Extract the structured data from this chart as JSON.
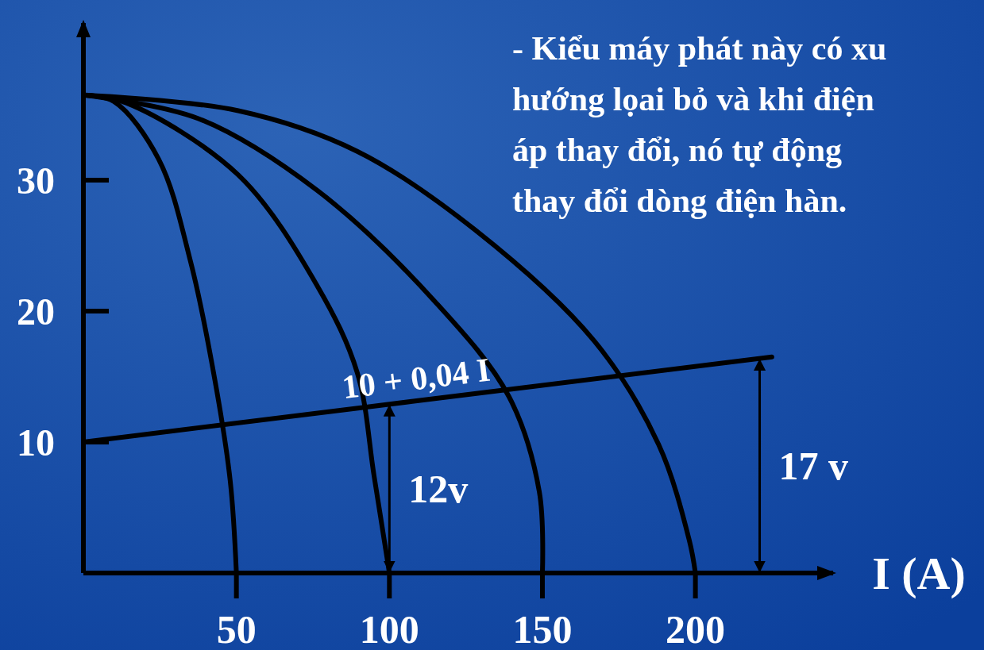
{
  "chart_data": {
    "type": "line",
    "xlabel": "I (A)",
    "xlim": [
      0,
      245
    ],
    "ylim": [
      0,
      42
    ],
    "xticks": [
      50,
      100,
      150,
      200
    ],
    "yticks": [
      10,
      20,
      30
    ],
    "grid": false,
    "marker": "none",
    "line_style": "solid",
    "series": [
      {
        "color": "#000000",
        "x": [
          0,
          10,
          24.6,
          35,
          43,
          48,
          50
        ],
        "values": [
          36.5,
          36,
          31.6,
          23.8,
          14.7,
          7,
          0
        ]
      },
      {
        "color": "#000000",
        "x": [
          0,
          14,
          50.6,
          76.5,
          89.5,
          95,
          100
        ],
        "values": [
          36.5,
          35.9,
          30.4,
          21.9,
          15.3,
          7.4,
          0
        ]
      },
      {
        "color": "#000000",
        "x": [
          0,
          37.6,
          76.5,
          115,
          139,
          149,
          150
        ],
        "values": [
          36.5,
          34.7,
          29.2,
          20.7,
          13.5,
          6.2,
          0
        ]
      },
      {
        "color": "#000000",
        "x": [
          0,
          50.6,
          89.5,
          128,
          167,
          188,
          198,
          200
        ],
        "values": [
          36.5,
          35.3,
          32.2,
          26.2,
          17.7,
          9.8,
          2.5,
          0
        ]
      },
      {
        "name": "10 + 0,04 I",
        "color": "#000000",
        "x": [
          0,
          225
        ],
        "values": [
          10,
          16.5
        ]
      }
    ],
    "annotations": [
      {
        "text": "12v",
        "x": 100,
        "y": 12.9
      },
      {
        "text": "17 v",
        "x": 221,
        "y": 16.4
      },
      "- Kiểu máy phát này có xu\nhướng lọai bỏ và khi điện\náp thay đổi, nó tự động\nthay đổi dòng điện hàn."
    ]
  }
}
